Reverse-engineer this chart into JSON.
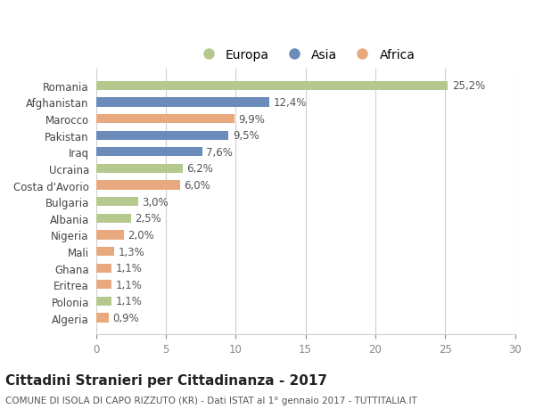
{
  "countries": [
    "Romania",
    "Afghanistan",
    "Marocco",
    "Pakistan",
    "Iraq",
    "Ucraina",
    "Costa d'Avorio",
    "Bulgaria",
    "Albania",
    "Nigeria",
    "Mali",
    "Ghana",
    "Eritrea",
    "Polonia",
    "Algeria"
  ],
  "values": [
    25.2,
    12.4,
    9.9,
    9.5,
    7.6,
    6.2,
    6.0,
    3.0,
    2.5,
    2.0,
    1.3,
    1.1,
    1.1,
    1.1,
    0.9
  ],
  "labels": [
    "25,2%",
    "12,4%",
    "9,9%",
    "9,5%",
    "7,6%",
    "6,2%",
    "6,0%",
    "3,0%",
    "2,5%",
    "2,0%",
    "1,3%",
    "1,1%",
    "1,1%",
    "1,1%",
    "0,9%"
  ],
  "continents": [
    "Europa",
    "Asia",
    "Africa",
    "Asia",
    "Asia",
    "Europa",
    "Africa",
    "Europa",
    "Europa",
    "Africa",
    "Africa",
    "Africa",
    "Africa",
    "Europa",
    "Africa"
  ],
  "colors": {
    "Europa": "#b5c98e",
    "Asia": "#6b8cba",
    "Africa": "#e8a97e"
  },
  "xlim": [
    0,
    30
  ],
  "xticks": [
    0,
    5,
    10,
    15,
    20,
    25,
    30
  ],
  "title": "Cittadini Stranieri per Cittadinanza - 2017",
  "subtitle": "COMUNE DI ISOLA DI CAPO RIZZUTO (KR) - Dati ISTAT al 1° gennaio 2017 - TUTTITALIA.IT",
  "background_color": "#ffffff",
  "grid_color": "#d0d0d0",
  "bar_height": 0.55,
  "label_fontsize": 8.5,
  "tick_fontsize": 8.5,
  "title_fontsize": 11,
  "subtitle_fontsize": 7.5
}
